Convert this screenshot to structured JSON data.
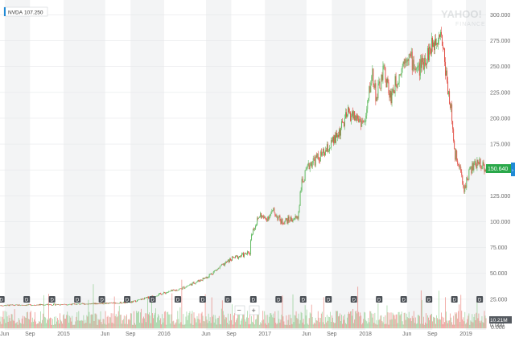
{
  "ticker_badge": {
    "symbol": "NVDA",
    "value": "107.250"
  },
  "watermark": {
    "brand": "YAHOO!",
    "sub": "FINANCE"
  },
  "current_price": "150.640",
  "volume_axis": {
    "top": "10.21M",
    "bottom": "0.000"
  },
  "zoom": {
    "minus": "−",
    "plus": "+"
  },
  "dividend_marker": "D",
  "colors": {
    "up": "#5cb85c",
    "down": "#e0483e",
    "badge": "#2aa84a",
    "accent": "#1f8ad6",
    "band": "#f3f4f5"
  },
  "chart_data": {
    "type": "candlestick",
    "title": "",
    "xlabel": "",
    "ylabel": "",
    "ylim": [
      0,
      305
    ],
    "y_ticks": [
      0,
      25,
      50,
      75,
      100,
      125,
      150,
      175,
      200,
      225,
      250,
      275,
      300
    ],
    "y_tick_labels": [
      "0.000",
      "25.000",
      "50.000",
      "75.000",
      "100.000",
      "125.000",
      "150.000",
      "175.000",
      "200.000",
      "225.000",
      "250.000",
      "275.000",
      "300.000"
    ],
    "x_ticks": [
      {
        "date": "2014-06-01",
        "label": "Jun"
      },
      {
        "date": "2014-09-01",
        "label": "Sep"
      },
      {
        "date": "2015-01-01",
        "label": "2015"
      },
      {
        "date": "2015-06-01",
        "label": "Jun"
      },
      {
        "date": "2015-09-01",
        "label": "Sep"
      },
      {
        "date": "2016-01-01",
        "label": "2016"
      },
      {
        "date": "2016-06-01",
        "label": "Jun"
      },
      {
        "date": "2016-09-01",
        "label": "Sep"
      },
      {
        "date": "2017-01-01",
        "label": "2017"
      },
      {
        "date": "2017-06-01",
        "label": "Jun"
      },
      {
        "date": "2017-09-01",
        "label": "Sep"
      },
      {
        "date": "2018-01-01",
        "label": "2018"
      },
      {
        "date": "2018-06-01",
        "label": "Jun"
      },
      {
        "date": "2018-09-01",
        "label": "Sep"
      },
      {
        "date": "2019-01-01",
        "label": "2019"
      }
    ],
    "date_range": [
      "2014-05-15",
      "2019-03-15"
    ],
    "price_series": [
      {
        "date": "2014-05-15",
        "close": 19.0
      },
      {
        "date": "2014-09-01",
        "close": 19.5
      },
      {
        "date": "2015-01-01",
        "close": 20.0
      },
      {
        "date": "2015-06-01",
        "close": 21.0
      },
      {
        "date": "2015-09-01",
        "close": 22.0
      },
      {
        "date": "2016-01-01",
        "close": 31.0
      },
      {
        "date": "2016-03-01",
        "close": 35.0
      },
      {
        "date": "2016-06-01",
        "close": 46.0
      },
      {
        "date": "2016-09-01",
        "close": 64.0
      },
      {
        "date": "2016-11-08",
        "close": 70.0
      },
      {
        "date": "2016-11-12",
        "close": 88.0
      },
      {
        "date": "2016-12-15",
        "close": 107.0
      },
      {
        "date": "2017-01-01",
        "close": 102.0
      },
      {
        "date": "2017-02-01",
        "close": 110.0
      },
      {
        "date": "2017-03-01",
        "close": 100.0
      },
      {
        "date": "2017-05-01",
        "close": 104.0
      },
      {
        "date": "2017-05-12",
        "close": 135.0
      },
      {
        "date": "2017-06-15",
        "close": 157.0
      },
      {
        "date": "2017-08-01",
        "close": 165.0
      },
      {
        "date": "2017-09-15",
        "close": 180.0
      },
      {
        "date": "2017-11-01",
        "close": 205.0
      },
      {
        "date": "2017-12-31",
        "close": 195.0
      },
      {
        "date": "2018-01-25",
        "close": 245.0
      },
      {
        "date": "2018-02-10",
        "close": 220.0
      },
      {
        "date": "2018-03-10",
        "close": 247.0
      },
      {
        "date": "2018-04-01",
        "close": 220.0
      },
      {
        "date": "2018-06-01",
        "close": 263.0
      },
      {
        "date": "2018-07-10",
        "close": 246.0
      },
      {
        "date": "2018-09-01",
        "close": 270.0
      },
      {
        "date": "2018-10-01",
        "close": 287.0
      },
      {
        "date": "2018-10-25",
        "close": 235.0
      },
      {
        "date": "2018-11-10",
        "close": 205.0
      },
      {
        "date": "2018-11-20",
        "close": 165.0
      },
      {
        "date": "2018-12-05",
        "close": 160.0
      },
      {
        "date": "2018-12-24",
        "close": 130.0
      },
      {
        "date": "2019-01-15",
        "close": 150.0
      },
      {
        "date": "2019-02-20",
        "close": 158.0
      },
      {
        "date": "2019-03-15",
        "close": 150.6
      }
    ],
    "dividend_dates": [
      "2014-05-20",
      "2014-08-20",
      "2014-11-20",
      "2015-02-20",
      "2015-05-20",
      "2015-08-20",
      "2015-11-20",
      "2016-02-20",
      "2016-05-20",
      "2016-08-20",
      "2016-11-20",
      "2017-02-20",
      "2017-05-20",
      "2017-08-20",
      "2017-11-20",
      "2018-02-20",
      "2018-05-20",
      "2018-08-20",
      "2018-11-20",
      "2019-02-20"
    ],
    "volume_axis_max_millions": 10.21,
    "grid": true,
    "legend": "none"
  }
}
